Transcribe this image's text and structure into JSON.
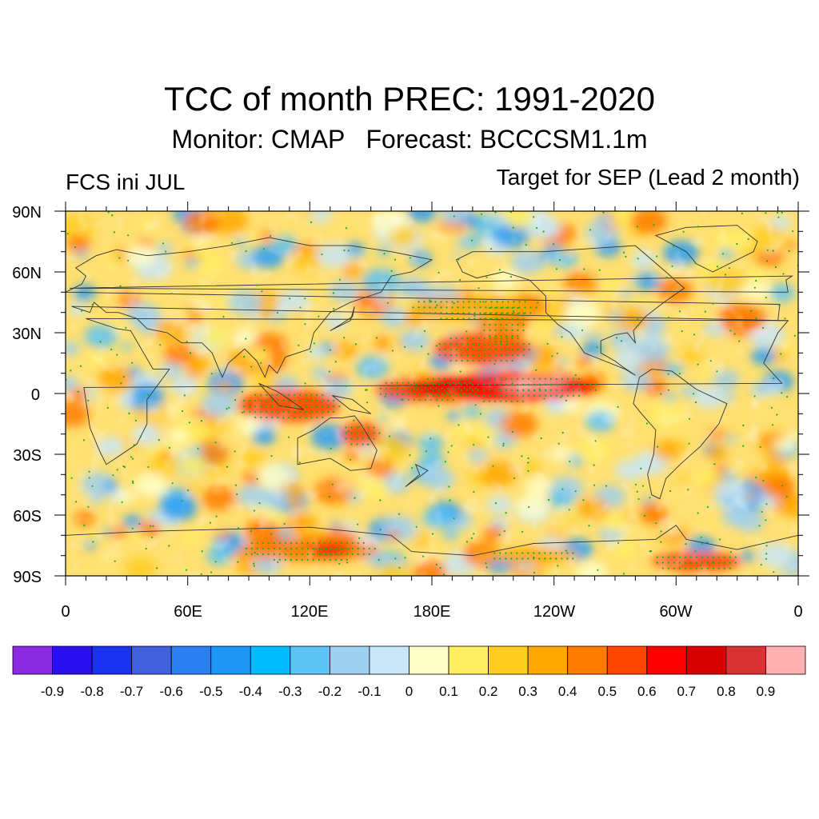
{
  "header": {
    "title": "TCC of month PREC: 1991-2020",
    "subtitle": "Monitor: CMAP   Forecast: BCCCSM1.1m",
    "left_label": "FCS ini JUL",
    "right_label": "Target for SEP (Lead 2 month)"
  },
  "map": {
    "projection": "cylindrical-equidistant",
    "lat_range": [
      -90,
      90
    ],
    "lon_range": [
      0,
      360
    ],
    "lat_labels": [
      "90N",
      "60N",
      "30N",
      "0",
      "30S",
      "60S",
      "90S"
    ],
    "lon_labels": [
      "0",
      "60E",
      "120E",
      "180E",
      "120W",
      "60W",
      "0"
    ],
    "stipple_color": "#22aa22",
    "coastline_color": "#333333"
  },
  "colorbar": {
    "labels": [
      "-0.9",
      "-0.8",
      "-0.7",
      "-0.6",
      "-0.5",
      "-0.4",
      "-0.3",
      "-0.2",
      "-0.1",
      "0",
      "0.1",
      "0.2",
      "0.3",
      "0.4",
      "0.5",
      "0.6",
      "0.7",
      "0.8",
      "0.9"
    ],
    "colors": [
      "#8a2be2",
      "#2a10f0",
      "#1a32f0",
      "#4060dc",
      "#2c7ff0",
      "#1e96f5",
      "#00bcff",
      "#5ec3f5",
      "#a0d0f0",
      "#c8e6f8",
      "#ffffc8",
      "#ffee60",
      "#ffcc20",
      "#ffa800",
      "#ff7c00",
      "#ff4600",
      "#ff0000",
      "#d80000",
      "#d83232",
      "#ffb0b0"
    ]
  }
}
